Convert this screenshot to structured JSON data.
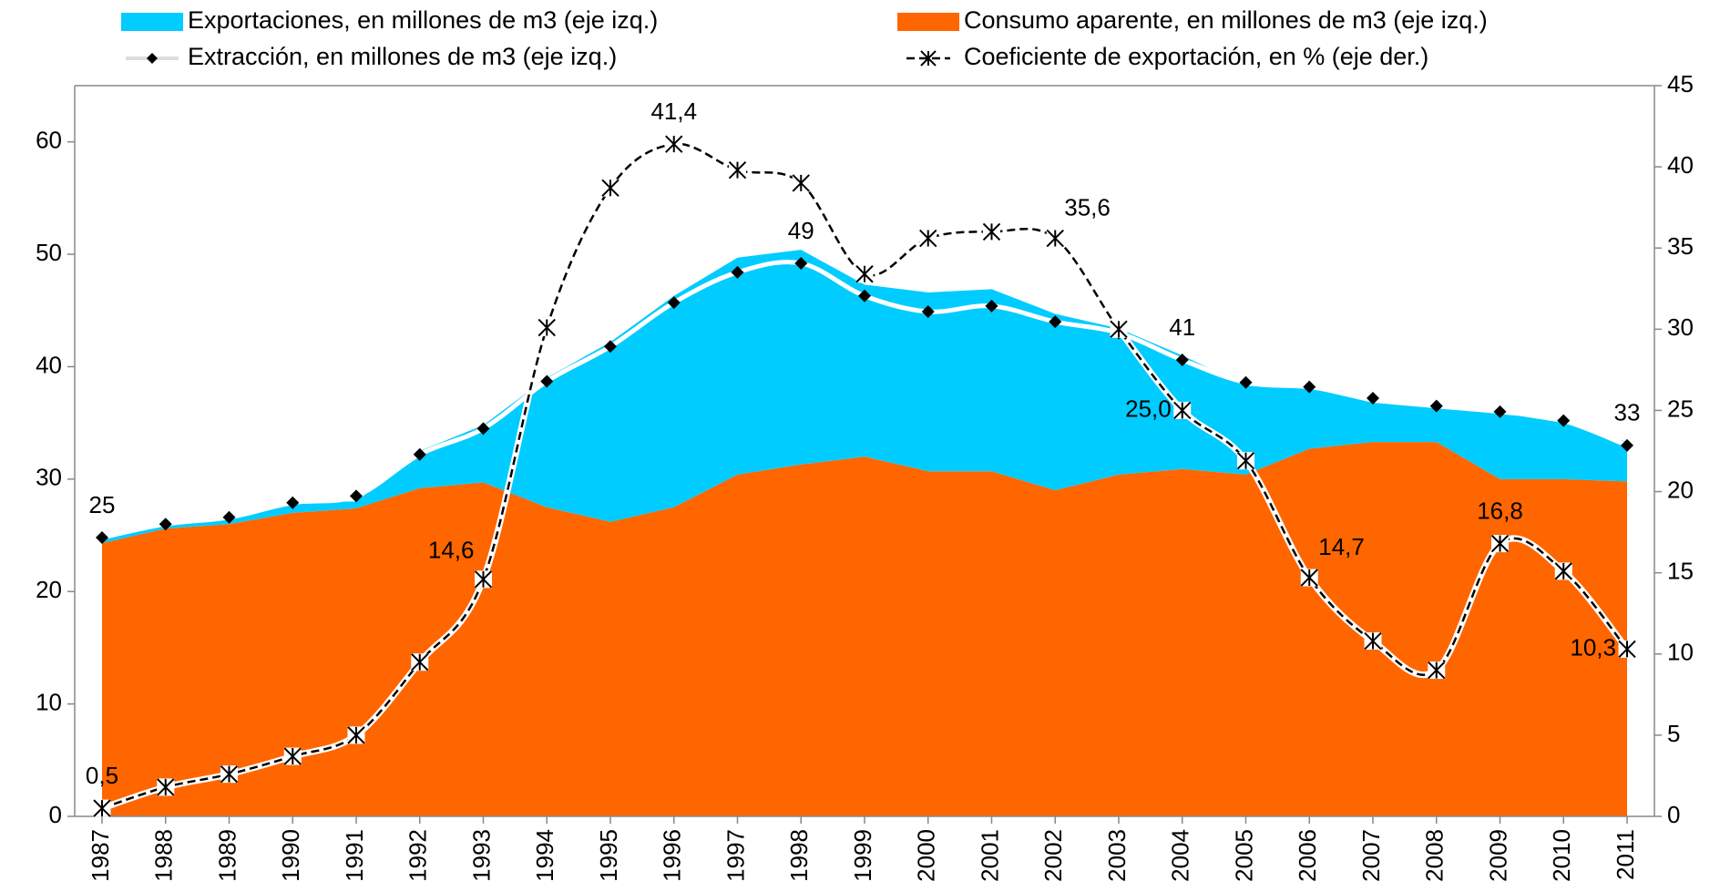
{
  "chart_data": {
    "type": "area-line",
    "categories": [
      "1987",
      "1988",
      "1989",
      "1990",
      "1991",
      "1992",
      "1993",
      "1994",
      "1995",
      "1996",
      "1997",
      "1998",
      "1999",
      "2000",
      "2001",
      "2002",
      "2003",
      "2004",
      "2005",
      "2006",
      "2007",
      "2008",
      "2009",
      "2010",
      "2011"
    ],
    "series": [
      {
        "name": "Consumo aparente, en millones de m3 (eje izq.)",
        "type": "area",
        "color": "#ff6600",
        "values": [
          24.3,
          25.6,
          26.0,
          27.0,
          27.4,
          29.2,
          29.7,
          27.5,
          26.2,
          27.5,
          30.4,
          31.3,
          32.0,
          30.7,
          30.7,
          29.0,
          30.4,
          30.9,
          30.4,
          32.7,
          33.3,
          33.3,
          30.0,
          30.0,
          29.8
        ]
      },
      {
        "name": "Exportaciones, en millones de m3 (eje izq.)",
        "type": "area",
        "stacked": true,
        "color": "#00ccff",
        "values": [
          0.5,
          0.6,
          0.6,
          1.0,
          0.6,
          3.3,
          5.1,
          11.5,
          16.0,
          18.8,
          19.3,
          19.1,
          15.3,
          15.9,
          16.2,
          15.7,
          13.0,
          10.1,
          7.9,
          5.4,
          3.5,
          3.0,
          5.9,
          5.0,
          3.5
        ]
      },
      {
        "name": "Extracción, en millones de m3 (eje izq.)",
        "type": "line",
        "color": "#ffffff",
        "values": [
          24.8,
          26.0,
          26.6,
          27.9,
          28.5,
          32.2,
          34.5,
          38.7,
          41.8,
          45.7,
          48.4,
          49.2,
          46.3,
          44.9,
          45.4,
          44.0,
          43.0,
          40.6,
          38.6,
          38.2,
          37.2,
          36.5,
          36.0,
          35.2,
          33.0
        ],
        "value_labels": [
          "25",
          null,
          null,
          null,
          null,
          null,
          null,
          null,
          null,
          null,
          null,
          "49",
          null,
          null,
          null,
          null,
          null,
          "41",
          null,
          null,
          null,
          null,
          null,
          null,
          "33"
        ]
      },
      {
        "name": "Coeficiente de exportación, en % (eje der.)",
        "type": "line",
        "axis": "y2",
        "color": "#000000",
        "dashed": true,
        "values": [
          0.5,
          1.8,
          2.6,
          3.7,
          5.0,
          9.5,
          14.6,
          30.1,
          38.7,
          41.4,
          39.8,
          39.0,
          33.4,
          35.6,
          36.0,
          35.6,
          30.0,
          25.0,
          21.9,
          14.7,
          10.8,
          9.0,
          16.8,
          15.1,
          10.3
        ],
        "value_labels": [
          "0,5",
          null,
          null,
          null,
          null,
          null,
          "14,6",
          null,
          null,
          "41,4",
          null,
          null,
          null,
          null,
          null,
          "35,6",
          null,
          "25,0",
          null,
          "14,7",
          null,
          null,
          "16,8",
          null,
          "10,3"
        ]
      }
    ],
    "ylim": [
      0,
      65
    ],
    "yticks": [
      0,
      10,
      20,
      30,
      40,
      50,
      60
    ],
    "y2lim": [
      0,
      45
    ],
    "y2ticks": [
      0,
      5,
      10,
      15,
      20,
      25,
      30,
      35,
      40,
      45
    ]
  }
}
